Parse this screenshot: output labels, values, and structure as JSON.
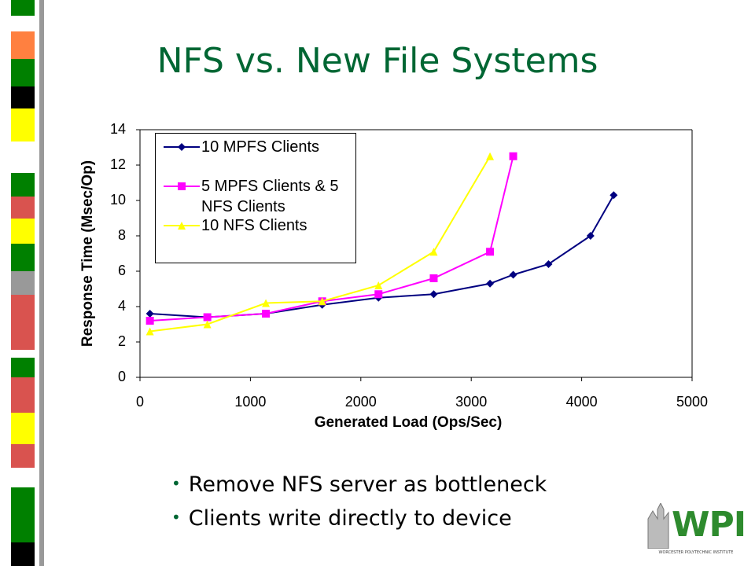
{
  "slide": {
    "title": "NFS vs. New File Systems",
    "bullets": [
      "Remove NFS server as bottleneck",
      "Clients write directly to device"
    ]
  },
  "logo": {
    "name": "WPI",
    "subtitle": "WORCESTER POLYTECHNIC INSTITUTE"
  },
  "chart_data": {
    "type": "line",
    "x_label": "Generated Load (Ops/Sec)",
    "y_label": "Response Time (Msec/Op)",
    "xlim": [
      0,
      5000
    ],
    "xticks": [
      0,
      1000,
      2000,
      3000,
      4000,
      5000
    ],
    "ylim": [
      0,
      14
    ],
    "yticks": [
      0,
      2,
      4,
      6,
      8,
      10,
      12,
      14
    ],
    "grid": false,
    "series": [
      {
        "name": "10 MPFS Clients",
        "color": "#000080",
        "marker": "diamond",
        "x": [
          90,
          610,
          1140,
          1650,
          2160,
          2660,
          3170,
          3380,
          3700,
          4080,
          4290
        ],
        "values": [
          3.6,
          3.4,
          3.6,
          4.1,
          4.5,
          4.7,
          5.3,
          5.8,
          6.4,
          8.0,
          10.3
        ]
      },
      {
        "name": "5 MPFS Clients & 5 NFS Clients",
        "color": "#ff00ff",
        "marker": "square",
        "x": [
          90,
          610,
          1140,
          1650,
          2160,
          2660,
          3170,
          3380
        ],
        "values": [
          3.2,
          3.4,
          3.6,
          4.3,
          4.7,
          5.6,
          7.1,
          12.5
        ]
      },
      {
        "name": "10 NFS Clients",
        "color": "#ffff00",
        "marker": "triangle",
        "x": [
          90,
          610,
          1140,
          1650,
          2160,
          2660,
          3170
        ],
        "values": [
          2.6,
          3.0,
          4.2,
          4.3,
          5.2,
          7.1,
          12.5
        ]
      }
    ]
  }
}
